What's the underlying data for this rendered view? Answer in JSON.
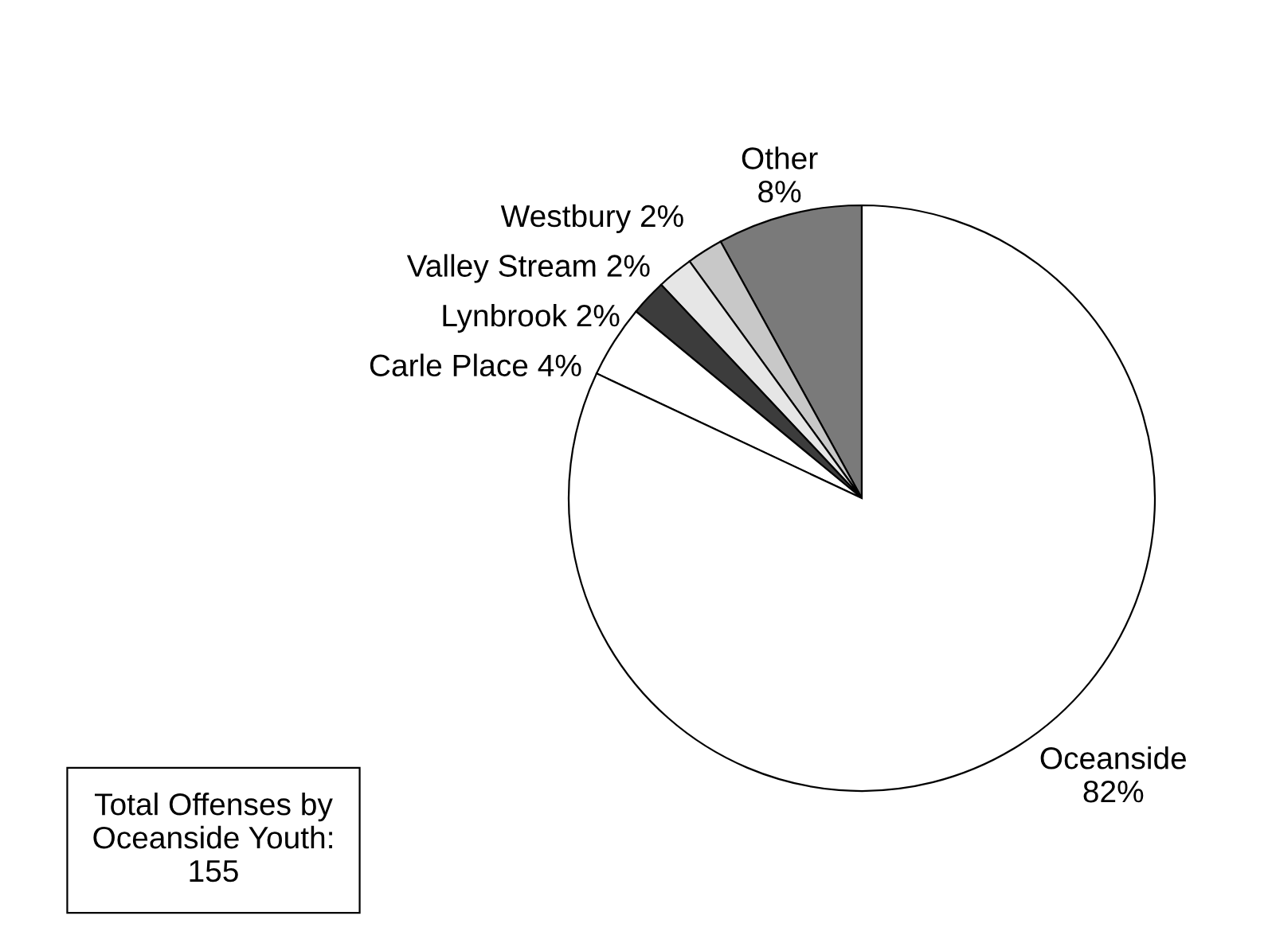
{
  "chart_data": {
    "type": "pie",
    "categories": [
      "Other",
      "Westbury",
      "Valley Stream",
      "Lynbrook",
      "Carle Place",
      "Oceanside"
    ],
    "values": [
      8,
      2,
      2,
      2,
      4,
      82
    ],
    "value_labels": [
      "8%",
      "2%",
      "2%",
      "2%",
      "4%",
      "82%"
    ],
    "colors": [
      "#7a7a7a",
      "#c8c8c8",
      "#e6e6e6",
      "#3c3c3c",
      "#ffffff",
      "#ffffff"
    ],
    "annotations": [
      "Total Offenses by\nOceanside Youth:\n155"
    ],
    "legend": false
  }
}
